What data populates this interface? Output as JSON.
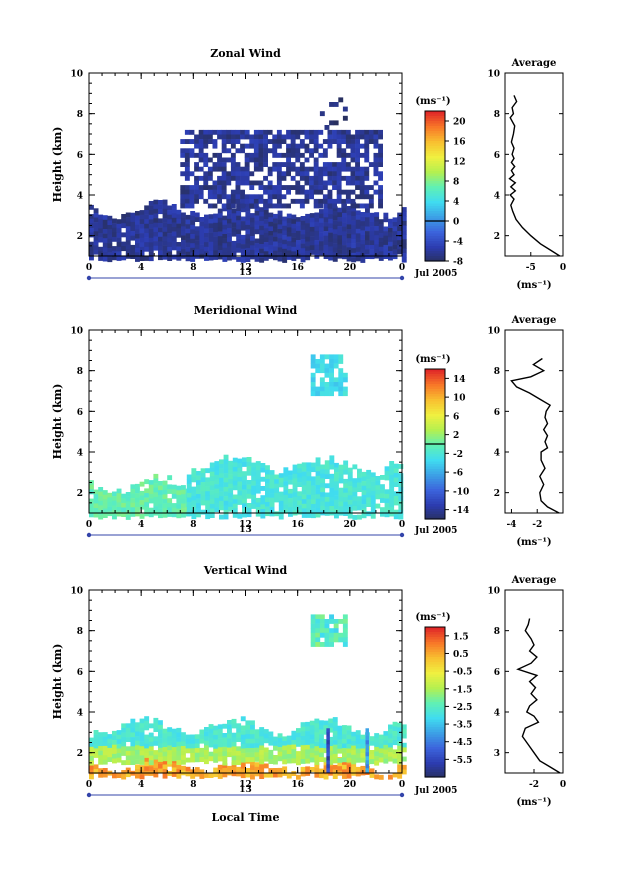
{
  "month_year": "Jul 2005",
  "date_label": "13",
  "x_axis_label": "Local Time",
  "y_axis_label": "Height (km)",
  "profile_x_label": "(ms⁻¹)",
  "colorbar_unit": "(ms⁻¹)",
  "profile_title": "Average",
  "x_ticks": [
    "0",
    "4",
    "8",
    "12",
    "16",
    "20",
    "0"
  ],
  "y_ticks": [
    "2",
    "4",
    "6",
    "8",
    "10"
  ],
  "chart_data": [
    {
      "type": "heatmap",
      "title": "Zonal Wind",
      "xlim": [
        0,
        24
      ],
      "ylim": [
        1,
        10
      ],
      "colorbar": {
        "vmin": -8,
        "vmax": 22,
        "ticks": [
          "20",
          "16",
          "12",
          "8",
          "4",
          "0",
          "-4",
          "-8"
        ],
        "tick_values": [
          20,
          16,
          12,
          8,
          4,
          0,
          -4,
          -8
        ],
        "zero_line": 0
      },
      "colors": [
        "#283060",
        "#2c3cb0",
        "#3c64dc",
        "#3ca0e6",
        "#40dcf0",
        "#60f0b4",
        "#b4f050",
        "#f0f040",
        "#f8c030",
        "#f87828",
        "#e02828"
      ],
      "regions": [
        {
          "label": "Dense cloud of negative zonal wind, 1-3.5 km, whole day",
          "x": [
            0,
            24
          ],
          "y": [
            0.9,
            3.5
          ],
          "value": -6
        },
        {
          "label": "Elevated cloud, 7.5-8.8 km",
          "x": [
            17,
            19.5
          ],
          "y": [
            7.4,
            8.8
          ],
          "value": -7
        },
        {
          "label": "Scattered returns 3.5-7 km",
          "x": [
            7,
            22.5
          ],
          "y": [
            3.5,
            7.2
          ],
          "value": -6
        }
      ],
      "profile": {
        "title": "Average",
        "xlim": [
          -9,
          0
        ],
        "x_ticks": [
          "-5",
          "0"
        ],
        "x_tick_values": [
          -5,
          0
        ],
        "y_ticks": [
          "2",
          "4",
          "6",
          "8",
          "10"
        ],
        "heights": [
          1.0,
          1.3,
          1.6,
          2.0,
          2.4,
          2.8,
          3.2,
          3.5,
          3.8,
          4.0,
          4.2,
          4.4,
          4.6,
          4.8,
          5.0,
          5.2,
          5.4,
          5.6,
          5.8,
          6.0,
          6.3,
          6.6,
          7.0,
          7.4,
          7.8,
          8.0,
          8.3,
          8.6,
          8.9
        ],
        "values": [
          -0.5,
          -2.0,
          -3.5,
          -5.0,
          -6.3,
          -7.3,
          -7.8,
          -8.1,
          -7.6,
          -8.2,
          -7.4,
          -8.1,
          -7.4,
          -8.3,
          -7.6,
          -8.0,
          -7.5,
          -8.0,
          -7.6,
          -7.9,
          -7.6,
          -8.0,
          -7.7,
          -7.5,
          -8.2,
          -7.7,
          -7.9,
          -7.2,
          -7.6
        ]
      }
    },
    {
      "type": "heatmap",
      "title": "Meridional Wind",
      "xlim": [
        0,
        24
      ],
      "ylim": [
        1,
        10
      ],
      "colorbar": {
        "vmin": -16,
        "vmax": 16,
        "ticks": [
          "14",
          "10",
          "6",
          "2",
          "-2",
          "-6",
          "-10",
          "-14"
        ],
        "tick_values": [
          14,
          10,
          6,
          2,
          -2,
          -6,
          -10,
          -14
        ],
        "zero_line": 0
      },
      "colors": [
        "#283060",
        "#2c3cb0",
        "#3c64dc",
        "#3ca0e6",
        "#40dcf0",
        "#60f0b4",
        "#b4f050",
        "#f0f040",
        "#f8c030",
        "#f87828",
        "#e02828"
      ],
      "regions": [
        {
          "label": "Near-surface layer with weak southward flow, 0-7 h",
          "x": [
            0,
            7.5
          ],
          "y": [
            0.9,
            2.6
          ],
          "value": 0
        },
        {
          "label": "Dense cloud 1-3.5 km after 7 h",
          "x": [
            7.5,
            24
          ],
          "y": [
            0.9,
            3.6
          ],
          "value": -2
        },
        {
          "label": "Elevated cloud, 7-9 km",
          "x": [
            17,
            19.5
          ],
          "y": [
            6.8,
            8.8
          ],
          "value": -3
        }
      ],
      "profile": {
        "title": "Average",
        "xlim": [
          -4.5,
          0
        ],
        "x_ticks": [
          "-4",
          "-2"
        ],
        "x_tick_values": [
          -4,
          -2
        ],
        "y_ticks": [
          "2",
          "4",
          "6",
          "8",
          "10"
        ],
        "heights": [
          1.0,
          1.3,
          1.6,
          2.0,
          2.4,
          2.8,
          3.2,
          3.6,
          4.0,
          4.2,
          4.5,
          4.8,
          5.1,
          5.4,
          5.7,
          6.0,
          6.3,
          6.6,
          6.9,
          7.2,
          7.5,
          7.7,
          8.0,
          8.3,
          8.6
        ],
        "values": [
          -0.3,
          -1.2,
          -1.7,
          -1.8,
          -1.5,
          -1.8,
          -1.4,
          -1.7,
          -1.7,
          -1.2,
          -1.4,
          -1.2,
          -1.5,
          -1.2,
          -1.4,
          -1.3,
          -1.0,
          -1.8,
          -2.6,
          -3.6,
          -4.0,
          -2.5,
          -1.5,
          -2.3,
          -1.6
        ]
      }
    },
    {
      "type": "heatmap",
      "title": "Vertical Wind",
      "xlim": [
        0,
        24
      ],
      "ylim": [
        1,
        10
      ],
      "colorbar": {
        "vmin": -6.5,
        "vmax": 2.0,
        "ticks": [
          "1.5",
          "0.5",
          "-0.5",
          "-1.5",
          "-2.5",
          "-3.5",
          "-4.5",
          "-5.5"
        ],
        "tick_values": [
          1.5,
          0.5,
          -0.5,
          -1.5,
          -2.5,
          -3.5,
          -4.5,
          -5.5
        ]
      },
      "colors": [
        "#283060",
        "#2c3cb0",
        "#3c64dc",
        "#3ca0e6",
        "#40dcf0",
        "#60f0b4",
        "#b4f050",
        "#f0f040",
        "#f8c030",
        "#f87828",
        "#e02828"
      ],
      "regions": [
        {
          "label": "Near-surface layer with weak fall speeds",
          "x": [
            0,
            24
          ],
          "y": [
            0.9,
            1.6
          ],
          "value": 0.3
        },
        {
          "label": "Cloud layer 1.6-3.5 km",
          "x": [
            0,
            24
          ],
          "y": [
            1.6,
            3.5
          ],
          "value": -1.5
        },
        {
          "label": "Elevated cloud, 7.5-9 km",
          "x": [
            17,
            19.5
          ],
          "y": [
            7.4,
            8.8
          ],
          "value": -2.5
        }
      ],
      "profile": {
        "title": "Average",
        "xlim": [
          -4,
          0
        ],
        "x_ticks": [
          "-2",
          "0"
        ],
        "x_tick_values": [
          -2,
          0
        ],
        "y_ticks": [
          "3",
          "4",
          "6",
          "8",
          "10"
        ],
        "heights": [
          1.0,
          1.3,
          1.6,
          2.0,
          2.4,
          2.8,
          3.2,
          3.5,
          3.8,
          4.0,
          4.3,
          4.6,
          4.9,
          5.2,
          5.5,
          5.8,
          6.1,
          6.4,
          6.7,
          7.0,
          7.3,
          7.6,
          8.0,
          8.3,
          8.6
        ],
        "values": [
          -0.2,
          -0.9,
          -1.6,
          -2.0,
          -2.4,
          -2.8,
          -2.6,
          -1.7,
          -2.0,
          -2.5,
          -2.3,
          -1.8,
          -2.2,
          -1.9,
          -2.3,
          -1.8,
          -3.1,
          -2.2,
          -1.8,
          -2.3,
          -2.0,
          -2.2,
          -2.6,
          -2.4,
          -2.3
        ]
      }
    }
  ]
}
